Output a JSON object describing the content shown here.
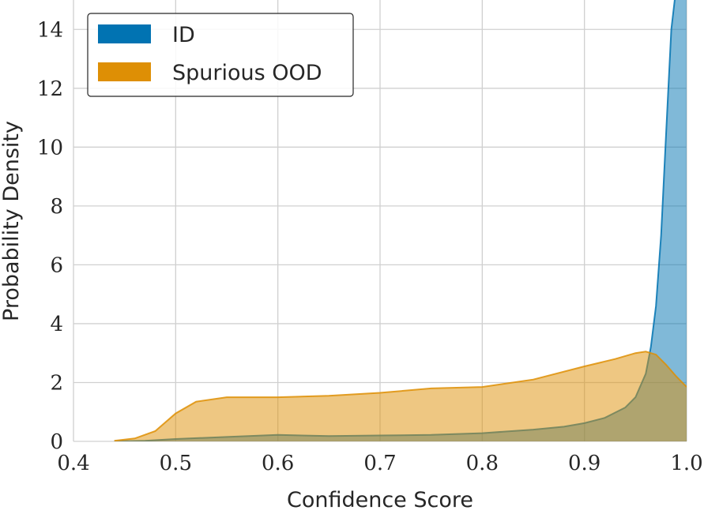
{
  "chart_data": {
    "type": "area",
    "title": "",
    "xlabel": "Confidence Score",
    "ylabel": "Probability Density",
    "xlim": [
      0.4,
      1.0
    ],
    "ylim": [
      0,
      15
    ],
    "xticks": [
      "0.4",
      "0.5",
      "0.6",
      "0.7",
      "0.8",
      "0.9",
      "1.0"
    ],
    "yticks": [
      "0",
      "2",
      "4",
      "6",
      "8",
      "10",
      "12",
      "14"
    ],
    "grid": true,
    "legend_position": "top-left",
    "series": [
      {
        "name": "ID",
        "color": "#0173b2",
        "x": [
          0.44,
          0.47,
          0.5,
          0.55,
          0.6,
          0.65,
          0.7,
          0.75,
          0.8,
          0.85,
          0.88,
          0.9,
          0.92,
          0.94,
          0.95,
          0.96,
          0.965,
          0.97,
          0.975,
          0.98,
          0.985,
          0.99,
          1.0
        ],
        "y": [
          0.0,
          0.02,
          0.08,
          0.15,
          0.22,
          0.18,
          0.2,
          0.22,
          0.28,
          0.4,
          0.5,
          0.62,
          0.8,
          1.15,
          1.5,
          2.3,
          3.2,
          4.6,
          7.0,
          10.5,
          14.0,
          15.5,
          16.0
        ]
      },
      {
        "name": "Spurious OOD",
        "color": "#de8f05",
        "x": [
          0.44,
          0.46,
          0.48,
          0.5,
          0.52,
          0.55,
          0.6,
          0.65,
          0.7,
          0.75,
          0.8,
          0.85,
          0.9,
          0.93,
          0.95,
          0.96,
          0.97,
          0.98,
          0.99,
          1.0
        ],
        "y": [
          0.02,
          0.1,
          0.35,
          0.95,
          1.35,
          1.5,
          1.5,
          1.55,
          1.65,
          1.8,
          1.85,
          2.1,
          2.55,
          2.8,
          3.0,
          3.05,
          2.95,
          2.6,
          2.2,
          1.85
        ]
      }
    ]
  }
}
